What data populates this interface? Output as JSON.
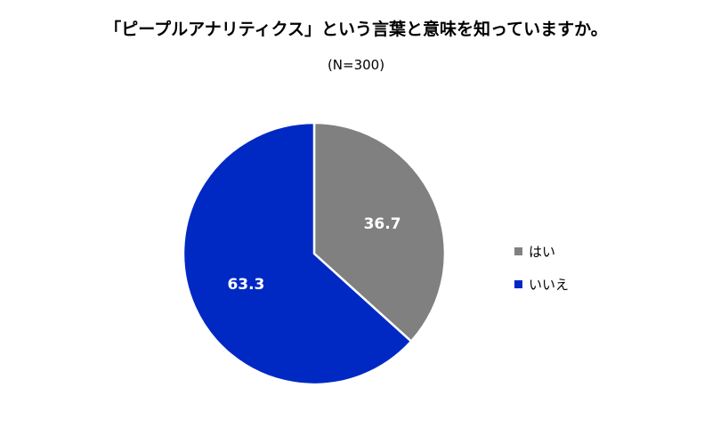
{
  "chart_data": {
    "type": "pie",
    "title": "「ピープルアナリティクス」という言葉と意味を知っていますか。",
    "subtitle": "(N=300)",
    "categories": [
      "はい",
      "いいえ"
    ],
    "values": [
      36.7,
      63.3
    ],
    "colors": [
      "#808080",
      "#0029c4"
    ],
    "legend_position": "right"
  }
}
